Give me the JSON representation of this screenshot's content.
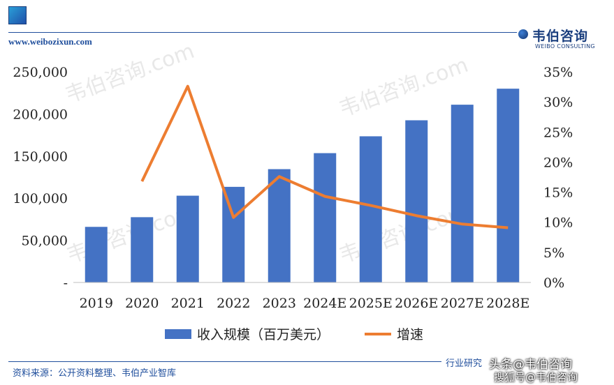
{
  "header": {
    "site_url": "www.weibozixun.com",
    "brand_cn": "韦伯咨询",
    "brand_en": "WEIBO CONSULTING"
  },
  "footer": {
    "source": "资料来源：公开资料整理、韦伯产业智库",
    "right_text": "行业研究",
    "overlay_line1": "头条@韦伯咨询",
    "overlay_line2": "搜狐号@韦伯咨询"
  },
  "watermark": "韦伯咨询.com",
  "colors": {
    "bar": "#4472c4",
    "line": "#ed7d31",
    "brand": "#1f4e9c"
  },
  "chart_data": {
    "type": "bar",
    "categories": [
      "2019",
      "2020",
      "2021",
      "2022",
      "2023",
      "2024E",
      "2025E",
      "2026E",
      "2027E",
      "2028E"
    ],
    "series": [
      {
        "name": "收入规模（百万美元）",
        "type": "bar",
        "axis": "left",
        "values": [
          66000,
          77500,
          103000,
          113500,
          134500,
          153500,
          173500,
          192500,
          211000,
          230000
        ]
      },
      {
        "name": "增速",
        "type": "line",
        "axis": "right",
        "values": [
          null,
          16.8,
          32.6,
          10.8,
          17.6,
          14.3,
          12.8,
          11.1,
          9.7,
          9.1
        ]
      }
    ],
    "y_left": {
      "min": 0,
      "max": 250000,
      "ticks": [
        "-",
        "50,000",
        "100,000",
        "150,000",
        "200,000",
        "250,000"
      ]
    },
    "y_right": {
      "min": 0,
      "max": 35,
      "ticks": [
        "0%",
        "5%",
        "10%",
        "15%",
        "20%",
        "25%",
        "30%",
        "35%"
      ]
    },
    "legend": {
      "placement": "bottom"
    },
    "grid": false
  }
}
